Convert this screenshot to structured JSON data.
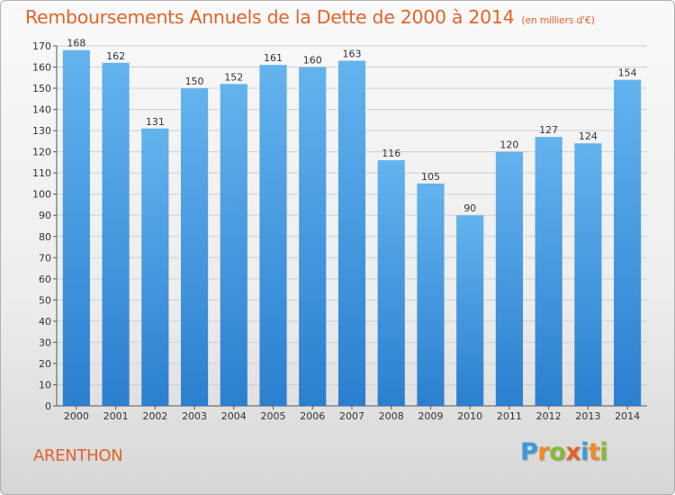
{
  "header": {
    "title": "Remboursements Annuels de la Dette de 2000 à 2014",
    "subtitle": "(en milliers d'€)"
  },
  "footer": {
    "town": "ARENTHON",
    "logo_letters": [
      "P",
      "r",
      "o",
      "x",
      "i",
      "t",
      "i"
    ],
    "logo_colors": [
      "#3a9ad9",
      "#f08a24",
      "#8ab833",
      "#e0642a",
      "#3a9ad9",
      "#f08a24",
      "#8ab833"
    ]
  },
  "colors": {
    "bar_top": "#63b3ee",
    "bar_bottom": "#2b7fcf",
    "grid": "#cfcfcf",
    "title": "#e0642a"
  },
  "chart_data": {
    "type": "bar",
    "categories": [
      "2000",
      "2001",
      "2002",
      "2003",
      "2004",
      "2005",
      "2006",
      "2007",
      "2008",
      "2009",
      "2010",
      "2011",
      "2012",
      "2013",
      "2014"
    ],
    "values": [
      168,
      162,
      131,
      150,
      152,
      161,
      160,
      163,
      116,
      105,
      90,
      120,
      127,
      124,
      154
    ],
    "ylim": [
      0,
      170
    ],
    "yticks": [
      0,
      10,
      20,
      30,
      40,
      50,
      60,
      70,
      80,
      90,
      100,
      110,
      120,
      130,
      140,
      150,
      160,
      170
    ],
    "grid": true
  }
}
